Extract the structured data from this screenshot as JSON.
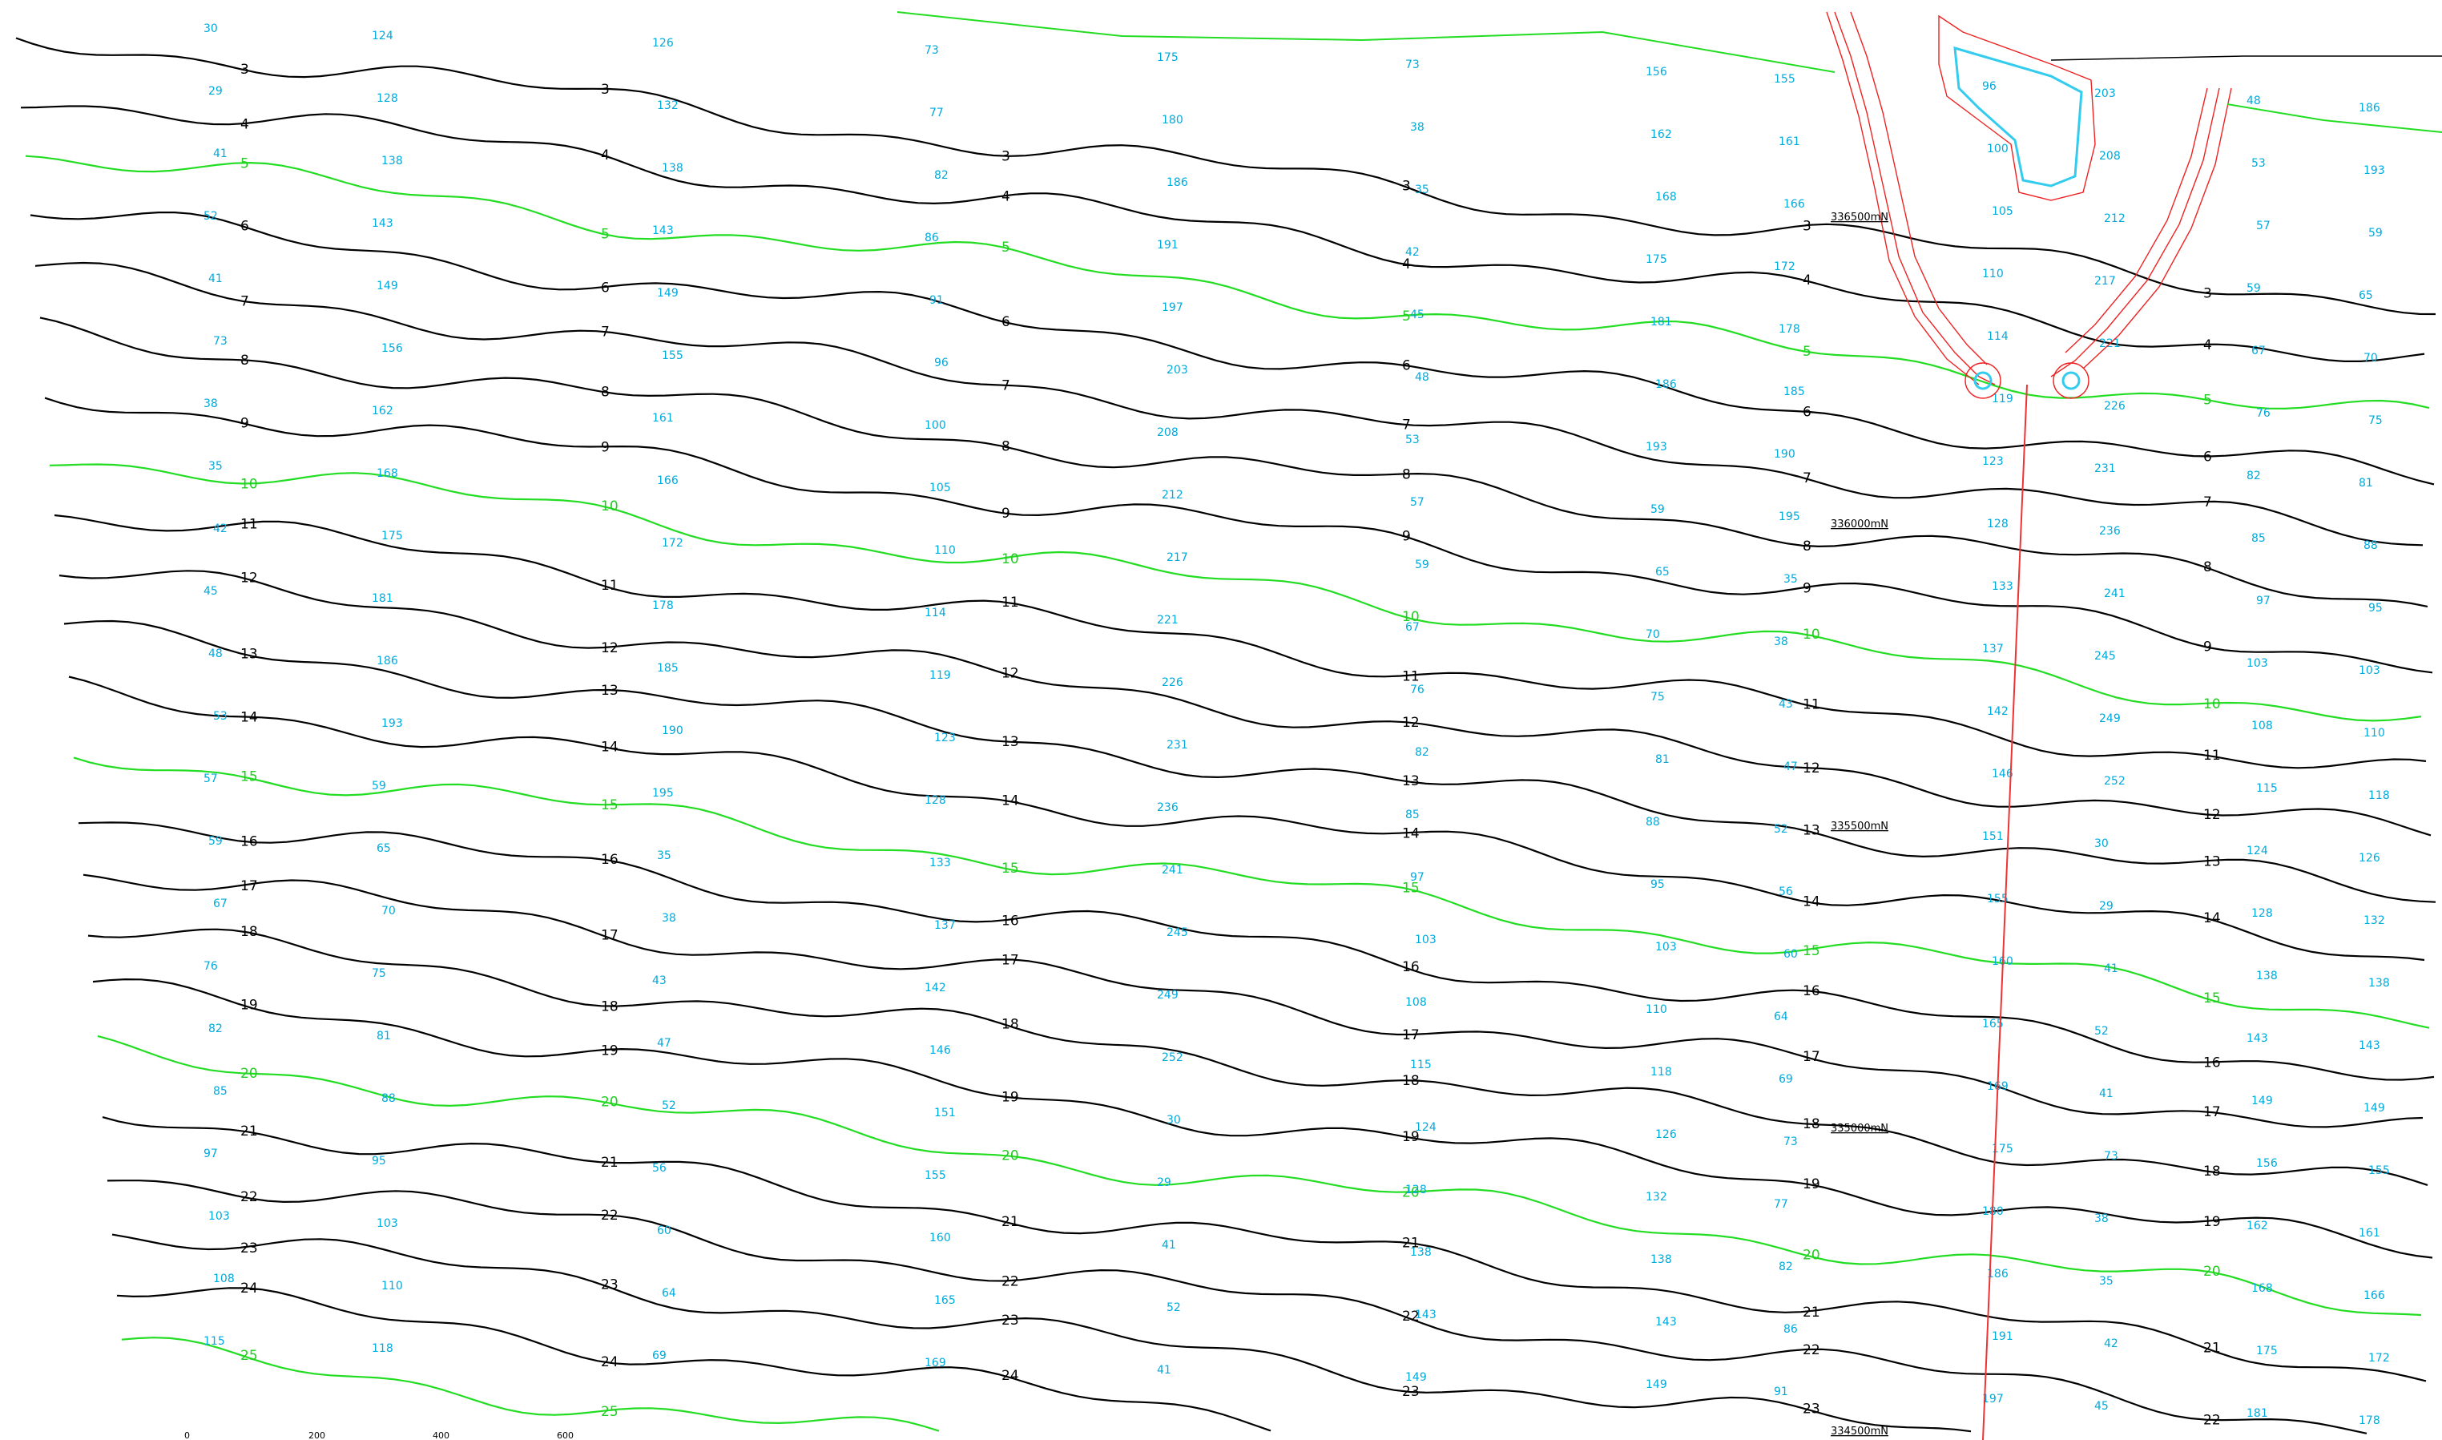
{
  "contours": [
    {
      "depth": "3",
      "kind": "black"
    },
    {
      "depth": "4",
      "kind": "black"
    },
    {
      "depth": "5",
      "kind": "green"
    },
    {
      "depth": "6",
      "kind": "black"
    },
    {
      "depth": "7",
      "kind": "black"
    },
    {
      "depth": "8",
      "kind": "black"
    },
    {
      "depth": "9",
      "kind": "black"
    },
    {
      "depth": "10",
      "kind": "green"
    },
    {
      "depth": "11",
      "kind": "black"
    },
    {
      "depth": "12",
      "kind": "black"
    },
    {
      "depth": "13",
      "kind": "black"
    },
    {
      "depth": "14",
      "kind": "black"
    },
    {
      "depth": "15",
      "kind": "green"
    },
    {
      "depth": "16",
      "kind": "black"
    },
    {
      "depth": "17",
      "kind": "black"
    },
    {
      "depth": "18",
      "kind": "black"
    },
    {
      "depth": "19",
      "kind": "black"
    },
    {
      "depth": "20",
      "kind": "green"
    },
    {
      "depth": "21",
      "kind": "black"
    },
    {
      "depth": "22",
      "kind": "black"
    },
    {
      "depth": "23",
      "kind": "black"
    },
    {
      "depth": "24",
      "kind": "black"
    },
    {
      "depth": "25",
      "kind": "green"
    }
  ],
  "grid_labels": [
    "336500mN",
    "336000mN",
    "335500mN",
    "335000mN",
    "334500mN"
  ],
  "scale_bar": [
    "0",
    "200",
    "400",
    "600"
  ],
  "soundings": [
    "30",
    "29",
    "41",
    "52",
    "41",
    "73",
    "38",
    "35",
    "42",
    "45",
    "48",
    "53",
    "57",
    "59",
    "67",
    "76",
    "82",
    "85",
    "97",
    "103",
    "108",
    "115",
    "124",
    "128",
    "138",
    "143",
    "149",
    "156",
    "162",
    "168",
    "175",
    "181",
    "186",
    "193",
    "59",
    "65",
    "70",
    "75",
    "81",
    "88",
    "95",
    "103",
    "110",
    "118",
    "126",
    "132",
    "138",
    "143",
    "149",
    "155",
    "161",
    "166",
    "172",
    "178",
    "185",
    "190",
    "195",
    "35",
    "38",
    "43",
    "47",
    "52",
    "56",
    "60",
    "64",
    "69",
    "73",
    "77",
    "82",
    "86",
    "91",
    "96",
    "100",
    "105",
    "110",
    "114",
    "119",
    "123",
    "128",
    "133",
    "137",
    "142",
    "146",
    "151",
    "155",
    "160",
    "165",
    "169",
    "175",
    "180",
    "186",
    "191",
    "197",
    "203",
    "208",
    "212",
    "217",
    "221",
    "226",
    "231",
    "236",
    "241",
    "245",
    "249",
    "252"
  ],
  "colors": {
    "contour_black": "#000000",
    "contour_green": "#22dd22",
    "sounding": "#00aadd",
    "harbour_outline": "#ee2222",
    "harbour_fill": "#33ccee",
    "channel": "#ee3333"
  }
}
